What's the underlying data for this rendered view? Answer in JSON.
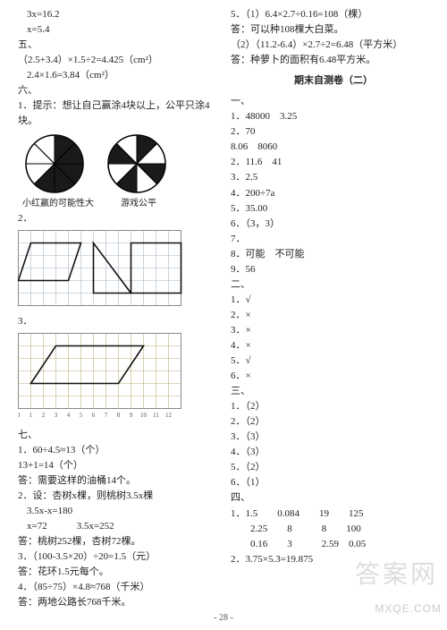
{
  "page_number": "- 28 -",
  "left": {
    "eq1": "3x=16.2",
    "eq2": "x=5.4",
    "sec5": "五、",
    "l5a": "（2.5+3.4）×1.5÷2=4.425（cm²）",
    "l5b": "2.4×1.6=3.84（cm²）",
    "sec6": "六、",
    "l6_1": "1．提示：想让自己赢涂4块以上，公平只涂4块。",
    "pie_caption_left": "小红赢的可能性大",
    "pie_caption_right": "游戏公平",
    "l6_2": "2．",
    "l6_3": "3．",
    "sec7": "七、",
    "q7_1a": "1．60÷4.5≈13（个）",
    "q7_1b": "13+1=14（个）",
    "q7_1c": "答：需要这样的油桶14个。",
    "q7_2a": "2．设：杏树x棵，则桃树3.5x棵",
    "q7_2b": "3.5x-x=180",
    "q7_2c": "x=72　　　3.5x=252",
    "q7_2d": "答：桃树252棵，杏树72棵。",
    "q7_3a": "3．（100-3.5×20）÷20=1.5（元）",
    "q7_3b": "答：花环1.5元每个。",
    "q7_4a": "4．（85÷75）×4.8≈768（千米）",
    "q7_4b": "答：两地公路长768千米。",
    "pie_left": {
      "bg": "#ffffff",
      "stroke": "#000000",
      "fill_dark": "#1a1a1a",
      "slices": 8,
      "dark_slices": [
        0,
        1,
        2,
        3,
        4
      ]
    },
    "pie_right": {
      "bg": "#ffffff",
      "stroke": "#000000",
      "fill_dark": "#1a1a1a",
      "slices": 8,
      "dark_slices": [
        0,
        2,
        4,
        6
      ]
    },
    "grid1": {
      "cols": 13,
      "rows": 6,
      "cell": 14,
      "stroke": "#a8b8c8",
      "shapes": [
        {
          "type": "polygon",
          "fill": "none",
          "stroke": "#111",
          "points": [
            [
              1,
              1
            ],
            [
              5,
              1
            ],
            [
              4,
              4
            ],
            [
              0,
              4
            ]
          ]
        },
        {
          "type": "polygon",
          "fill": "none",
          "stroke": "#111",
          "points": [
            [
              6,
              1
            ],
            [
              6,
              5
            ],
            [
              9,
              5
            ]
          ]
        },
        {
          "type": "polygon",
          "fill": "none",
          "stroke": "#111",
          "points": [
            [
              9,
              1
            ],
            [
              13,
              1
            ],
            [
              13,
              5
            ],
            [
              9,
              5
            ]
          ]
        }
      ]
    },
    "grid2": {
      "cols": 13,
      "rows": 6,
      "cell": 14,
      "stroke": "#bfb080",
      "axis_labels_x": [
        "0",
        "1",
        "2",
        "3",
        "4",
        "5",
        "6",
        "7",
        "8",
        "9",
        "10",
        "11",
        "12"
      ],
      "shapes": [
        {
          "type": "polygon",
          "fill": "none",
          "stroke": "#111",
          "points": [
            [
              3,
              1
            ],
            [
              10,
              1
            ],
            [
              8,
              4
            ],
            [
              1,
              4
            ]
          ]
        }
      ]
    }
  },
  "right": {
    "top_5a": "5．（1）6.4×2.7÷0.16=108（棵）",
    "top_5b": "答：可以种108棵大白菜。",
    "top_5c": "（2）（11.2-6.4）×2.7÷2=6.48（平方米）",
    "top_5d": "答：种萝卜的面积有6.48平方米。",
    "title": "期末自测卷（二）",
    "sec1": "一、",
    "a1": "1．48000　3.25",
    "a2": "2．70",
    "a3": "8.06　8060",
    "a4": "2．11.6　41",
    "a5": "3．2.5",
    "a6": "4．200÷7a",
    "a7": "5．35.00",
    "a8": "6．（3，3）",
    "a9": "7．",
    "a10": "8．可能　不可能",
    "a11": "9．56",
    "sec2": "二、",
    "j1": "1．√",
    "j2": "2．×",
    "j3": "3．×",
    "j4": "4．×",
    "j5": "5．√",
    "j6": "6．×",
    "sec3": "三、",
    "c1": "1．（2）",
    "c2": "2．（2）",
    "c3": "3．（3）",
    "c4": "4．（3）",
    "c5": "5．（2）",
    "c6": "6．（1）",
    "sec4": "四、",
    "t4_1": "1．1.5　　0.084　　19　　125",
    "t4_1b": "　　2.25　　8　　　8　　100",
    "t4_1c": "　　0.16　　3　　　2.59　0.05",
    "t4_2": "2．3.75×5.3=19.875",
    "watermark_zh": "答案网",
    "watermark_url": "MXQE.COM"
  }
}
